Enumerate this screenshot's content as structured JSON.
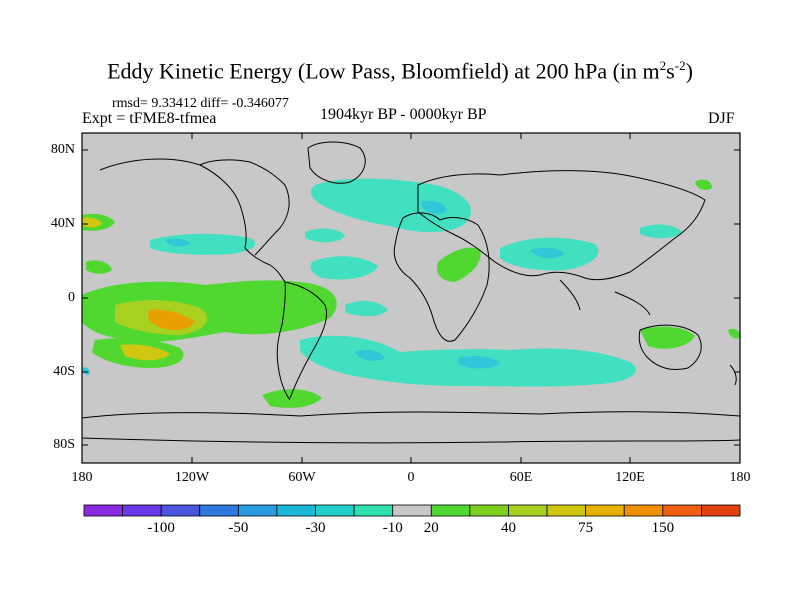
{
  "title": "Eddy Kinetic Energy (Low Pass, Bloomfield) at 200 hPa (in m",
  "title_sup1": "2",
  "title_mid": "s",
  "title_sup2": "-2",
  "title_end": ")",
  "stats": "rmsd= 9.33412 diff= -0.346077",
  "expt": "Expt = tFME8-tfmea",
  "period": "1904kyr BP - 0000kyr BP",
  "season": "DJF",
  "lat_ticks": [
    "80N",
    "40N",
    "0",
    "40S",
    "80S"
  ],
  "lon_ticks": [
    "180",
    "120W",
    "60W",
    "0",
    "60E",
    "120E",
    "180"
  ],
  "colorbar": {
    "colors": [
      "#8a2be2",
      "#6a3ae8",
      "#4a55e0",
      "#2f78e0",
      "#2a9be0",
      "#1cb8d8",
      "#20d0c8",
      "#30e0b0",
      "#c8c8c8",
      "#50d830",
      "#80d020",
      "#a8d020",
      "#d0c810",
      "#e8b000",
      "#f09000",
      "#ee6010",
      "#e04010"
    ],
    "labels": [
      "-100",
      "-50",
      "-30",
      "-10",
      "20",
      "40",
      "75",
      "150"
    ]
  },
  "legend_colors": {
    "background": "#c8c8c8",
    "light_cyan": "#40e0c0",
    "cyan": "#30c8d8",
    "green": "#50d830",
    "yellow_green": "#a8d020",
    "yellow": "#d0c810",
    "orange": "#e8a000"
  }
}
